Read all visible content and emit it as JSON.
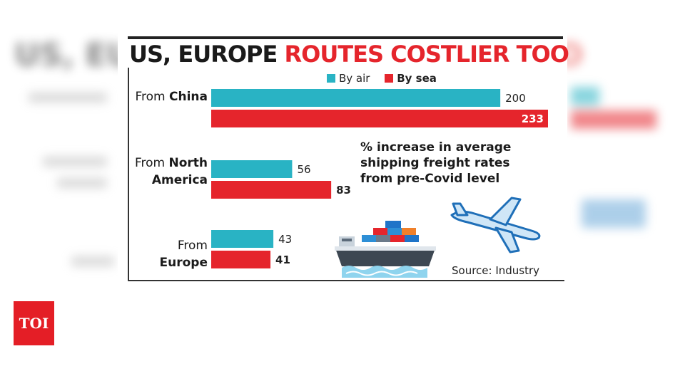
{
  "title": {
    "part1": "US, EUROPE",
    "part2": "ROUTES COSTLIER TOO"
  },
  "annotation": "% increase in average shipping freight rates from pre-Covid level",
  "source": "Source: Industry",
  "logo": "TOI",
  "colors": {
    "air": "#29b3c4",
    "sea": "#e5252c",
    "title_accent": "#e5252c",
    "logo_bg": "#e41e26"
  },
  "icons": [
    "cargo-ship-icon",
    "airplane-icon"
  ],
  "chart_data": {
    "type": "bar",
    "orientation": "horizontal",
    "categories": [
      {
        "lines": [
          {
            "text": "From ",
            "bold": false
          },
          {
            "text": "China",
            "bold": true
          }
        ]
      },
      {
        "lines": [
          {
            "text": "From ",
            "bold": false
          },
          {
            "text": "North",
            "bold": true
          },
          {
            "text": "America",
            "bold": true,
            "newline": true
          }
        ]
      },
      {
        "lines": [
          {
            "text": "From",
            "bold": false
          },
          {
            "text": "Europe",
            "bold": true,
            "newline": true
          }
        ]
      }
    ],
    "category_names": [
      "From China",
      "From North America",
      "From Europe"
    ],
    "series": [
      {
        "name": "By air",
        "values": [
          200,
          56,
          43
        ]
      },
      {
        "name": "By sea",
        "values": [
          233,
          83,
          41
        ]
      }
    ],
    "xlim": [
      0,
      233
    ],
    "legend": "top",
    "grid": false
  }
}
